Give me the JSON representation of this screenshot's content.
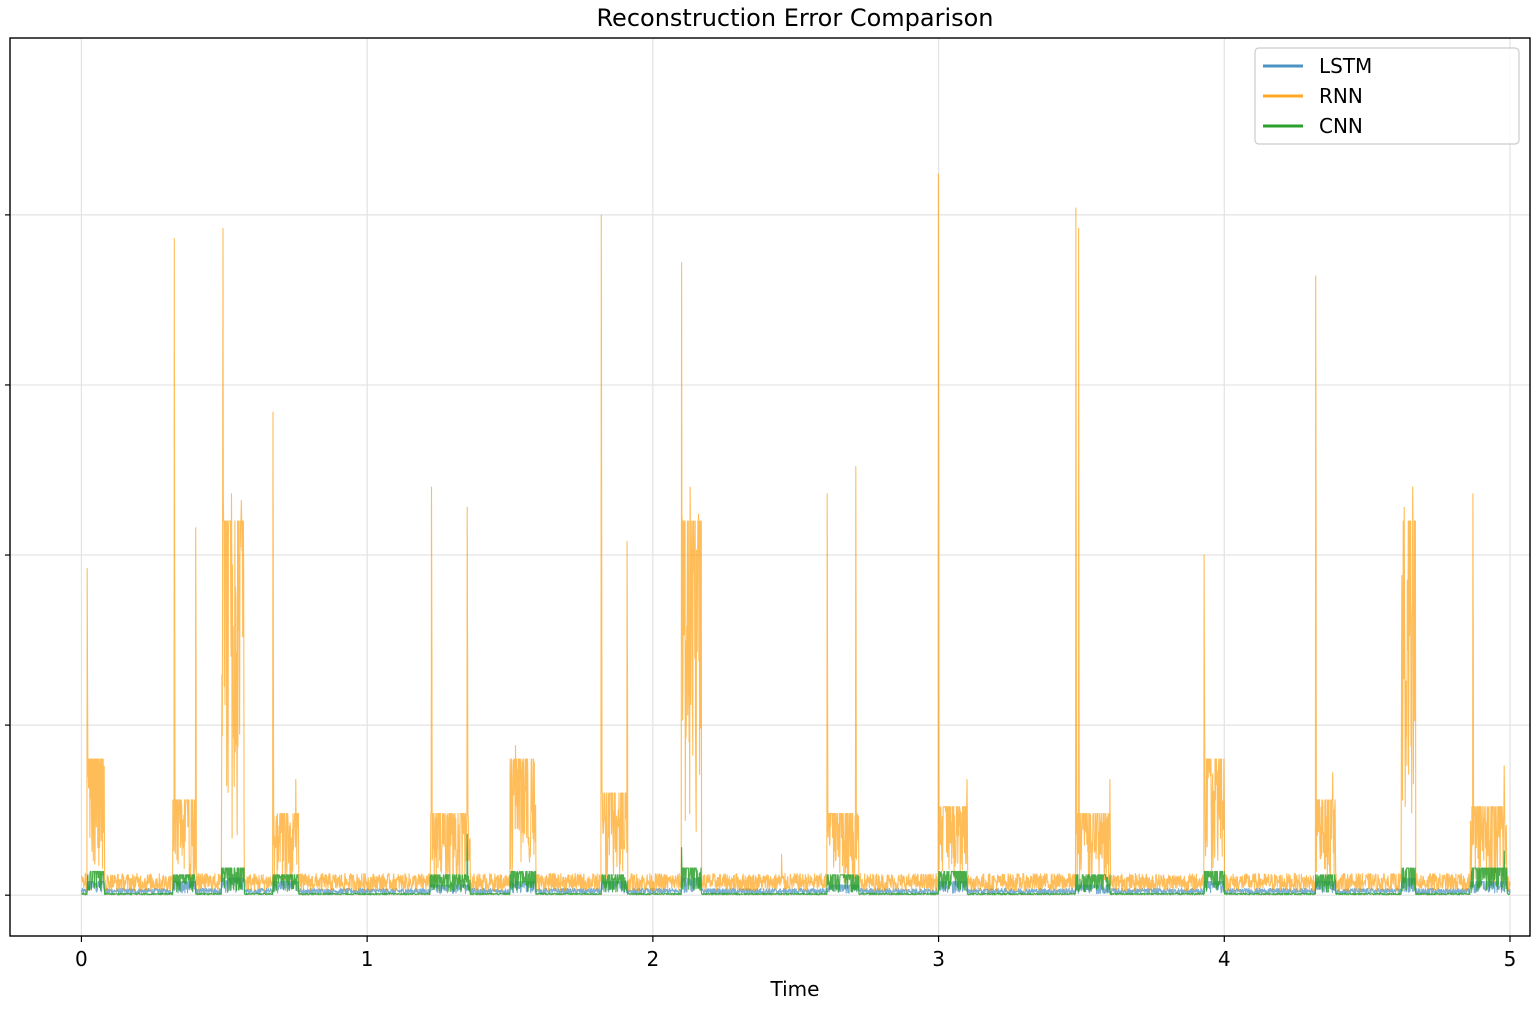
{
  "chart_data": {
    "type": "line",
    "title": "Reconstruction Error Comparison",
    "xlabel": "Time",
    "ylabel": "",
    "xlim": [
      -0.25,
      5.07
    ],
    "ylim": [
      -0.06,
      1.26
    ],
    "xticks": [
      0,
      1,
      2,
      3,
      4,
      5
    ],
    "xtick_labels": [
      "0",
      "1",
      "2",
      "3",
      "4",
      "5"
    ],
    "yticks": [
      0,
      0.25,
      0.5,
      0.75,
      1.0
    ],
    "ytick_labels": [
      "",
      "",
      "",
      "",
      ""
    ],
    "grid": true,
    "legend_position": "top-right",
    "series": [
      {
        "name": "LSTM",
        "color": "#1f77b4",
        "opacity": 0.6,
        "baseline": 0.01,
        "segments": [
          [
            0.02,
            0.08,
            0.02
          ],
          [
            0.32,
            0.4,
            0.02
          ],
          [
            0.49,
            0.57,
            0.025
          ],
          [
            0.67,
            0.76,
            0.02
          ],
          [
            1.22,
            1.36,
            0.015
          ],
          [
            1.5,
            1.59,
            0.02
          ],
          [
            1.82,
            1.91,
            0.02
          ],
          [
            2.1,
            2.17,
            0.025
          ],
          [
            2.61,
            2.72,
            0.015
          ],
          [
            3.0,
            3.1,
            0.02
          ],
          [
            3.48,
            3.6,
            0.015
          ],
          [
            3.93,
            4.0,
            0.02
          ],
          [
            4.32,
            4.39,
            0.02
          ],
          [
            4.62,
            4.67,
            0.025
          ],
          [
            4.86,
            4.99,
            0.02
          ]
        ],
        "spikes": []
      },
      {
        "name": "RNN",
        "color": "#ff9900",
        "opacity": 0.65,
        "baseline": 0.032,
        "segments": [
          [
            0.02,
            0.08,
            0.2
          ],
          [
            0.32,
            0.4,
            0.14
          ],
          [
            0.49,
            0.57,
            0.55
          ],
          [
            0.67,
            0.76,
            0.12
          ],
          [
            1.22,
            1.36,
            0.12
          ],
          [
            1.5,
            1.59,
            0.2
          ],
          [
            1.82,
            1.91,
            0.15
          ],
          [
            2.1,
            2.17,
            0.55
          ],
          [
            2.61,
            2.72,
            0.12
          ],
          [
            3.0,
            3.1,
            0.13
          ],
          [
            3.48,
            3.6,
            0.12
          ],
          [
            3.93,
            4.0,
            0.2
          ],
          [
            4.32,
            4.39,
            0.14
          ],
          [
            4.62,
            4.67,
            0.55
          ],
          [
            4.86,
            4.99,
            0.13
          ]
        ],
        "spikes": [
          [
            0.02,
            0.48
          ],
          [
            0.325,
            0.965
          ],
          [
            0.4,
            0.54
          ],
          [
            0.495,
            0.98
          ],
          [
            0.525,
            0.59
          ],
          [
            0.56,
            0.58
          ],
          [
            0.67,
            0.71
          ],
          [
            0.75,
            0.17
          ],
          [
            1.225,
            0.6
          ],
          [
            1.35,
            0.57
          ],
          [
            1.52,
            0.22
          ],
          [
            1.82,
            1.0
          ],
          [
            1.91,
            0.52
          ],
          [
            2.1,
            0.93
          ],
          [
            2.13,
            0.6
          ],
          [
            2.16,
            0.56
          ],
          [
            2.45,
            0.06
          ],
          [
            2.61,
            0.59
          ],
          [
            2.71,
            0.63
          ],
          [
            3.0,
            1.06
          ],
          [
            3.1,
            0.17
          ],
          [
            3.48,
            1.01
          ],
          [
            3.49,
            0.98
          ],
          [
            3.6,
            0.17
          ],
          [
            3.93,
            0.5
          ],
          [
            3.99,
            0.2
          ],
          [
            4.32,
            0.91
          ],
          [
            4.38,
            0.18
          ],
          [
            4.63,
            0.57
          ],
          [
            4.66,
            0.6
          ],
          [
            4.87,
            0.59
          ],
          [
            4.98,
            0.19
          ]
        ]
      },
      {
        "name": "CNN",
        "color": "#2ca02c",
        "opacity": 0.85,
        "baseline": 0.003,
        "segments": [
          [
            0.02,
            0.08,
            0.035
          ],
          [
            0.32,
            0.4,
            0.03
          ],
          [
            0.49,
            0.57,
            0.04
          ],
          [
            0.67,
            0.76,
            0.03
          ],
          [
            1.22,
            1.36,
            0.03
          ],
          [
            1.5,
            1.59,
            0.035
          ],
          [
            1.82,
            1.91,
            0.03
          ],
          [
            2.1,
            2.17,
            0.04
          ],
          [
            2.61,
            2.72,
            0.03
          ],
          [
            3.0,
            3.1,
            0.035
          ],
          [
            3.48,
            3.6,
            0.03
          ],
          [
            3.93,
            4.0,
            0.035
          ],
          [
            4.32,
            4.39,
            0.03
          ],
          [
            4.62,
            4.67,
            0.04
          ],
          [
            4.86,
            4.99,
            0.04
          ]
        ],
        "spikes": [
          [
            1.35,
            0.09
          ],
          [
            2.1,
            0.07
          ],
          [
            4.98,
            0.065
          ]
        ]
      }
    ]
  }
}
